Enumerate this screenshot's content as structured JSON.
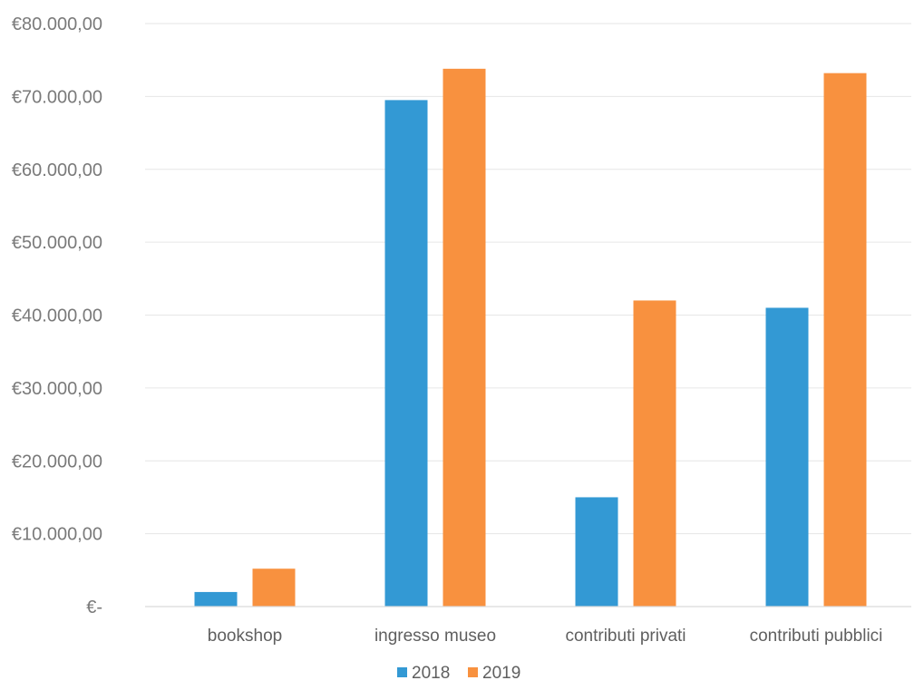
{
  "chart_data": {
    "type": "bar",
    "categories": [
      "bookshop",
      "ingresso museo",
      "contributi privati",
      "contributi pubblici"
    ],
    "series": [
      {
        "name": "2018",
        "color": "#3399d4",
        "values": [
          2000,
          69500,
          15000,
          41000
        ]
      },
      {
        "name": "2019",
        "color": "#f8913f",
        "values": [
          5200,
          73800,
          42000,
          73200
        ]
      }
    ],
    "ylim": [
      0,
      80000
    ],
    "yticks": [
      0,
      10000,
      20000,
      30000,
      40000,
      50000,
      60000,
      70000,
      80000
    ],
    "ytick_labels": [
      "€-",
      "€10.000,00",
      "€20.000,00",
      "€30.000,00",
      "€40.000,00",
      "€50.000,00",
      "€60.000,00",
      "€70.000,00",
      "€80.000,00"
    ],
    "title": "",
    "xlabel": "",
    "ylabel": "",
    "grid": true,
    "legend": "bottom"
  }
}
